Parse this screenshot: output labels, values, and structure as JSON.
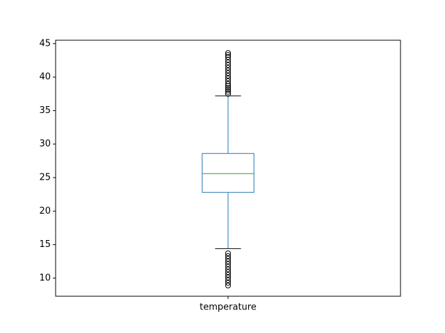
{
  "chart_data": {
    "type": "box",
    "title": "",
    "xlabel": "",
    "ylabel": "",
    "categories": [
      "temperature"
    ],
    "ylim": [
      7.3,
      45.5
    ],
    "yticks": [
      10,
      15,
      20,
      25,
      30,
      35,
      40,
      45
    ],
    "grid": false,
    "boxes": [
      {
        "name": "temperature",
        "whisker_low": 14.4,
        "q1": 22.8,
        "median": 25.6,
        "q3": 28.6,
        "whisker_high": 37.2,
        "outliers_high": [
          37.5,
          37.8,
          38.1,
          38.4,
          38.7,
          39.0,
          39.4,
          39.8,
          40.2,
          40.6,
          41.0,
          41.4,
          41.8,
          42.2,
          42.6,
          43.0,
          43.3,
          43.6
        ],
        "outliers_low": [
          8.9,
          9.3,
          9.7,
          10.1,
          10.5,
          10.9,
          11.3,
          11.7,
          12.1,
          12.5,
          12.9,
          13.3,
          13.7
        ]
      }
    ],
    "colors": {
      "box": "#1f77b4",
      "median": "#2ca02c",
      "whisker": "#1f77b4",
      "cap": "#000000",
      "outlier": "#000000"
    }
  }
}
